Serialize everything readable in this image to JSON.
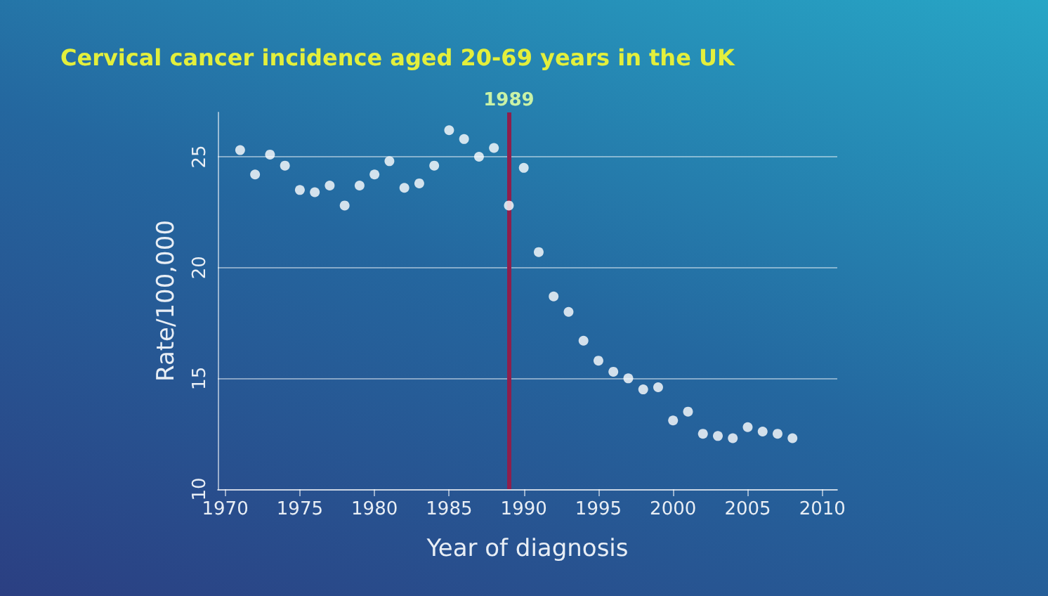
{
  "chart_data": {
    "type": "scatter",
    "title": "Cervical cancer incidence aged 20-69 years in the UK",
    "xlabel": "Year of diagnosis",
    "ylabel": "Rate/100,000",
    "x": [
      1971,
      1972,
      1973,
      1974,
      1975,
      1976,
      1977,
      1978,
      1979,
      1980,
      1981,
      1982,
      1983,
      1984,
      1985,
      1986,
      1987,
      1988,
      1989,
      1990,
      1991,
      1992,
      1993,
      1994,
      1995,
      1996,
      1997,
      1998,
      1999,
      2000,
      2001,
      2002,
      2003,
      2004,
      2005,
      2006,
      2007,
      2008
    ],
    "series": [
      {
        "color": "#ffffff",
        "values": [
          25.3,
          24.2,
          25.1,
          24.6,
          23.5,
          23.4,
          23.7,
          22.8,
          23.7,
          24.2,
          24.8,
          23.6,
          23.8,
          24.6,
          26.2,
          25.8,
          25.0,
          25.4,
          22.8,
          24.5,
          20.7,
          18.7,
          18.0,
          16.7,
          15.8,
          15.3,
          15.0,
          14.5,
          14.6,
          13.1,
          13.5,
          12.5,
          12.4,
          12.3,
          12.8,
          12.6,
          12.5,
          12.3
        ]
      }
    ],
    "xlim": [
      1969.5,
      2011
    ],
    "xticks": [
      1970,
      1975,
      1980,
      1985,
      1990,
      1995,
      2000,
      2005,
      2010
    ],
    "ylim": [
      10,
      27
    ],
    "yticks": [
      10,
      15,
      20,
      25
    ],
    "ref_lines": [
      {
        "axis": "x",
        "value": 1989,
        "label": "1989",
        "color": "#8e1f4c"
      }
    ],
    "grid": "y",
    "marker": "circle"
  }
}
